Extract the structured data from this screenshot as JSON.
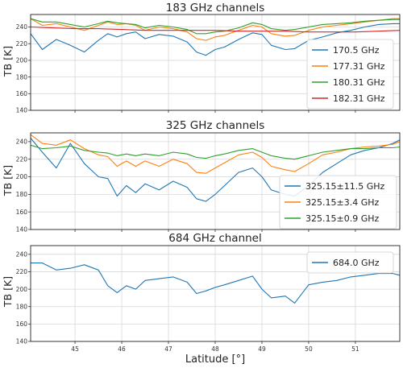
{
  "chart_data": [
    {
      "type": "line",
      "title": "183 GHz channels",
      "xlabel": "",
      "ylabel": "TB [K]",
      "xlim": [
        44.05,
        51.95
      ],
      "ylim": [
        140,
        255
      ],
      "yticks": [
        140,
        160,
        180,
        200,
        220,
        240
      ],
      "grid": true,
      "legend_position": "right",
      "series": [
        {
          "name": "170.5 GHz",
          "color": "#1f77b4",
          "x": [
            44.05,
            44.3,
            44.6,
            44.9,
            45.2,
            45.5,
            45.7,
            45.9,
            46.1,
            46.3,
            46.5,
            46.8,
            47.1,
            47.4,
            47.6,
            47.8,
            48.0,
            48.2,
            48.5,
            48.8,
            49.0,
            49.2,
            49.5,
            49.7,
            50.0,
            50.3,
            50.6,
            50.9,
            51.2,
            51.5,
            51.8,
            51.95
          ],
          "y": [
            232,
            213,
            225,
            218,
            210,
            224,
            232,
            228,
            232,
            234,
            226,
            231,
            229,
            222,
            210,
            206,
            213,
            216,
            225,
            233,
            231,
            218,
            213,
            214,
            224,
            228,
            233,
            236,
            240,
            243,
            244,
            244
          ]
        },
        {
          "name": "177.31 GHz",
          "color": "#ff7f0e",
          "x": [
            44.05,
            44.3,
            44.6,
            44.9,
            45.2,
            45.5,
            45.7,
            45.9,
            46.1,
            46.3,
            46.5,
            46.8,
            47.1,
            47.4,
            47.6,
            47.8,
            48.0,
            48.2,
            48.5,
            48.8,
            49.0,
            49.2,
            49.5,
            49.7,
            50.0,
            50.3,
            50.6,
            50.9,
            51.2,
            51.5,
            51.8,
            51.95
          ],
          "y": [
            250,
            242,
            244,
            240,
            236,
            242,
            246,
            243,
            244,
            242,
            236,
            240,
            238,
            234,
            226,
            224,
            228,
            230,
            236,
            242,
            240,
            232,
            229,
            230,
            236,
            240,
            242,
            244,
            246,
            248,
            250,
            250
          ]
        },
        {
          "name": "180.31 GHz",
          "color": "#2ca02c",
          "x": [
            44.05,
            44.3,
            44.6,
            44.9,
            45.2,
            45.5,
            45.7,
            45.9,
            46.1,
            46.3,
            46.5,
            46.8,
            47.1,
            47.4,
            47.6,
            47.8,
            48.0,
            48.2,
            48.5,
            48.8,
            49.0,
            49.2,
            49.5,
            49.7,
            50.0,
            50.3,
            50.6,
            50.9,
            51.2,
            51.5,
            51.8,
            51.95
          ],
          "y": [
            250,
            246,
            246,
            243,
            240,
            244,
            247,
            245,
            244,
            243,
            239,
            242,
            240,
            237,
            232,
            232,
            234,
            235,
            239,
            245,
            243,
            238,
            236,
            237,
            240,
            243,
            244,
            245,
            247,
            248,
            249,
            249
          ]
        },
        {
          "name": "182.31 GHz",
          "color": "#d62728",
          "x": [
            44.05,
            44.5,
            45.0,
            45.5,
            46.0,
            46.5,
            47.0,
            47.5,
            48.0,
            48.5,
            49.0,
            49.5,
            50.0,
            50.5,
            51.0,
            51.5,
            51.95
          ],
          "y": [
            240,
            239,
            238,
            238,
            237,
            236,
            236,
            236,
            236,
            235,
            235,
            235,
            234,
            234,
            234,
            235,
            236
          ]
        }
      ]
    },
    {
      "type": "line",
      "title": "325 GHz channels",
      "xlabel": "",
      "ylabel": "TB [K]",
      "xlim": [
        44.05,
        51.95
      ],
      "ylim": [
        140,
        250
      ],
      "yticks": [
        140,
        160,
        180,
        200,
        220,
        240
      ],
      "grid": true,
      "legend_position": "bottom-right",
      "series": [
        {
          "name": "325.15±11.5 GHz",
          "color": "#1f77b4",
          "x": [
            44.05,
            44.3,
            44.6,
            44.9,
            45.2,
            45.5,
            45.7,
            45.9,
            46.1,
            46.3,
            46.5,
            46.8,
            47.1,
            47.4,
            47.6,
            47.8,
            48.0,
            48.2,
            48.5,
            48.8,
            49.0,
            49.2,
            49.5,
            49.7,
            50.0,
            50.3,
            50.6,
            50.9,
            51.2,
            51.5,
            51.8,
            51.95
          ],
          "y": [
            244,
            228,
            210,
            238,
            215,
            200,
            198,
            178,
            190,
            182,
            192,
            185,
            195,
            188,
            175,
            172,
            180,
            190,
            205,
            210,
            200,
            185,
            180,
            178,
            190,
            205,
            215,
            225,
            230,
            233,
            238,
            242
          ]
        },
        {
          "name": "325.15±3.4 GHz",
          "color": "#ff7f0e",
          "x": [
            44.05,
            44.3,
            44.6,
            44.9,
            45.2,
            45.5,
            45.7,
            45.9,
            46.1,
            46.3,
            46.5,
            46.8,
            47.1,
            47.4,
            47.6,
            47.8,
            48.0,
            48.2,
            48.5,
            48.8,
            49.0,
            49.2,
            49.5,
            49.7,
            50.0,
            50.3,
            50.6,
            50.9,
            51.2,
            51.5,
            51.8,
            51.95
          ],
          "y": [
            248,
            238,
            236,
            242,
            232,
            225,
            223,
            212,
            218,
            212,
            218,
            212,
            220,
            215,
            205,
            204,
            210,
            216,
            225,
            228,
            222,
            212,
            208,
            206,
            215,
            225,
            228,
            232,
            234,
            235,
            237,
            240
          ]
        },
        {
          "name": "325.15±0.9 GHz",
          "color": "#2ca02c",
          "x": [
            44.05,
            44.3,
            44.6,
            44.9,
            45.2,
            45.5,
            45.7,
            45.9,
            46.1,
            46.3,
            46.5,
            46.8,
            47.1,
            47.4,
            47.6,
            47.8,
            48.0,
            48.2,
            48.5,
            48.8,
            49.0,
            49.2,
            49.5,
            49.7,
            50.0,
            50.3,
            50.6,
            50.9,
            51.2,
            51.5,
            51.8,
            51.95
          ],
          "y": [
            236,
            232,
            233,
            235,
            230,
            228,
            227,
            224,
            226,
            224,
            226,
            224,
            228,
            226,
            222,
            221,
            224,
            226,
            230,
            232,
            228,
            224,
            221,
            220,
            224,
            228,
            230,
            232,
            232,
            233,
            233,
            234
          ]
        }
      ]
    },
    {
      "type": "line",
      "title": "684 GHz channel",
      "xlabel": "Latitude [°]",
      "ylabel": "TB [K]",
      "xlim": [
        44.05,
        51.95
      ],
      "ylim": [
        140,
        250
      ],
      "xticks": [
        45,
        46,
        47,
        48,
        49,
        50,
        51
      ],
      "yticks": [
        140,
        160,
        180,
        200,
        220,
        240
      ],
      "grid": true,
      "legend_position": "top-right",
      "series": [
        {
          "name": "684.0 GHz",
          "color": "#1f77b4",
          "x": [
            44.05,
            44.3,
            44.6,
            44.9,
            45.2,
            45.5,
            45.7,
            45.9,
            46.1,
            46.3,
            46.5,
            46.8,
            47.1,
            47.4,
            47.6,
            47.8,
            48.0,
            48.2,
            48.5,
            48.8,
            49.0,
            49.2,
            49.5,
            49.7,
            50.0,
            50.3,
            50.6,
            50.9,
            51.2,
            51.5,
            51.8,
            51.95
          ],
          "y": [
            230,
            230,
            222,
            224,
            228,
            222,
            204,
            196,
            204,
            200,
            210,
            212,
            214,
            208,
            195,
            198,
            202,
            205,
            210,
            215,
            200,
            190,
            192,
            184,
            205,
            208,
            210,
            214,
            216,
            218,
            218,
            216
          ]
        }
      ]
    }
  ]
}
